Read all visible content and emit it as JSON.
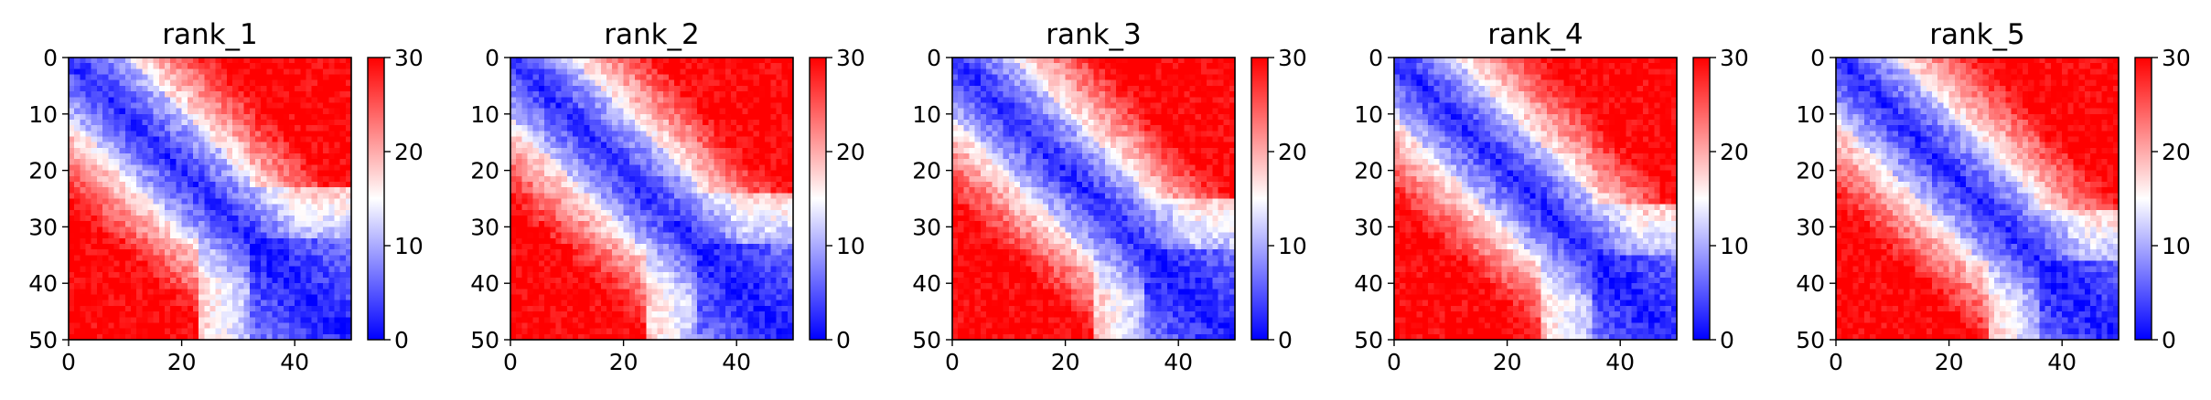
{
  "chart_data": [
    {
      "type": "heatmap",
      "title": "rank_1",
      "x_ticks": [
        "0",
        "20",
        "40"
      ],
      "y_ticks": [
        "0",
        "10",
        "20",
        "30",
        "40",
        "50"
      ],
      "xlim": [
        0,
        50
      ],
      "ylim": [
        50,
        0
      ],
      "colorbar": {
        "ticks": [
          "0",
          "10",
          "20",
          "30"
        ],
        "range": [
          0,
          30
        ]
      },
      "colormap": [
        "#0000ff",
        "#ffffff",
        "#ff0000"
      ],
      "cmap_name": "bwr",
      "grid": "off"
    },
    {
      "type": "heatmap",
      "title": "rank_2",
      "x_ticks": [
        "0",
        "20",
        "40"
      ],
      "y_ticks": [
        "0",
        "10",
        "20",
        "30",
        "40",
        "50"
      ],
      "xlim": [
        0,
        50
      ],
      "ylim": [
        50,
        0
      ],
      "colorbar": {
        "ticks": [
          "0",
          "10",
          "20",
          "30"
        ],
        "range": [
          0,
          30
        ]
      },
      "colormap": [
        "#0000ff",
        "#ffffff",
        "#ff0000"
      ],
      "cmap_name": "bwr",
      "grid": "off"
    },
    {
      "type": "heatmap",
      "title": "rank_3",
      "x_ticks": [
        "0",
        "20",
        "40"
      ],
      "y_ticks": [
        "0",
        "10",
        "20",
        "30",
        "40",
        "50"
      ],
      "xlim": [
        0,
        50
      ],
      "ylim": [
        50,
        0
      ],
      "colorbar": {
        "ticks": [
          "0",
          "10",
          "20",
          "30"
        ],
        "range": [
          0,
          30
        ]
      },
      "colormap": [
        "#0000ff",
        "#ffffff",
        "#ff0000"
      ],
      "cmap_name": "bwr",
      "grid": "off"
    },
    {
      "type": "heatmap",
      "title": "rank_4",
      "x_ticks": [
        "0",
        "20",
        "40"
      ],
      "y_ticks": [
        "0",
        "10",
        "20",
        "30",
        "40",
        "50"
      ],
      "xlim": [
        0,
        50
      ],
      "ylim": [
        50,
        0
      ],
      "colorbar": {
        "ticks": [
          "0",
          "10",
          "20",
          "30"
        ],
        "range": [
          0,
          30
        ]
      },
      "colormap": [
        "#0000ff",
        "#ffffff",
        "#ff0000"
      ],
      "cmap_name": "bwr",
      "grid": "off"
    },
    {
      "type": "heatmap",
      "title": "rank_5",
      "x_ticks": [
        "0",
        "20",
        "40"
      ],
      "y_ticks": [
        "0",
        "10",
        "20",
        "30",
        "40",
        "50"
      ],
      "xlim": [
        0,
        50
      ],
      "ylim": [
        50,
        0
      ],
      "colorbar": {
        "ticks": [
          "0",
          "10",
          "20",
          "30"
        ],
        "range": [
          0,
          30
        ]
      },
      "colormap": [
        "#0000ff",
        "#ffffff",
        "#ff0000"
      ],
      "cmap_name": "bwr",
      "grid": "off"
    }
  ]
}
